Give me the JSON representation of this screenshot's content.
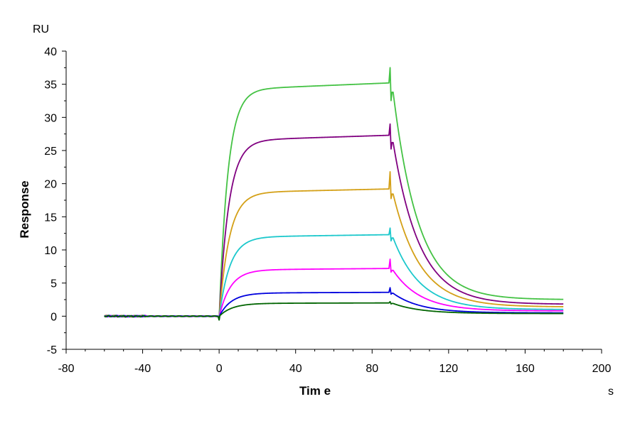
{
  "chart_data": {
    "type": "line",
    "xlabel": "Tim e",
    "ylabel": "Response",
    "x_unit": "s",
    "y_unit": "RU",
    "xlim": [
      -80,
      200
    ],
    "ylim": [
      -5,
      40
    ],
    "x_ticks": [
      "-80",
      "-40",
      "0",
      "40",
      "80",
      "120",
      "160",
      "200"
    ],
    "y_ticks": [
      "-5",
      "0",
      "5",
      "10",
      "15",
      "20",
      "25",
      "30",
      "35",
      "40"
    ],
    "grid": false,
    "legend": "none",
    "series": [
      {
        "color": "#44c244",
        "plateau": 35.2,
        "final": 2.5,
        "spike": 37.5,
        "ka": 0.22,
        "kd": 0.075
      },
      {
        "color": "#800080",
        "plateau": 27.3,
        "final": 1.8,
        "spike": 29.0,
        "ka": 0.2,
        "kd": 0.072
      },
      {
        "color": "#d4a017",
        "plateau": 19.2,
        "final": 1.4,
        "spike": 21.8,
        "ka": 0.19,
        "kd": 0.07
      },
      {
        "color": "#1cc8cc",
        "plateau": 12.3,
        "final": 1.0,
        "spike": 13.3,
        "ka": 0.18,
        "kd": 0.07
      },
      {
        "color": "#ff00ff",
        "plateau": 7.2,
        "final": 0.8,
        "spike": 8.6,
        "ka": 0.17,
        "kd": 0.07
      },
      {
        "color": "#0000dd",
        "plateau": 3.6,
        "final": 0.5,
        "spike": 4.3,
        "ka": 0.16,
        "kd": 0.07
      },
      {
        "color": "#006400",
        "plateau": 2.0,
        "final": 0.4,
        "spike": 2.2,
        "ka": 0.15,
        "kd": 0.07
      }
    ]
  }
}
